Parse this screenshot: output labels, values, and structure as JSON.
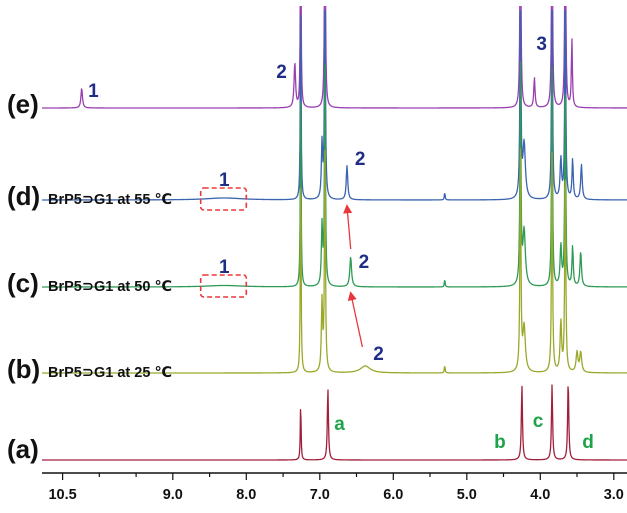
{
  "chart_data": {
    "type": "line",
    "title": "",
    "xlabel": "",
    "ylabel": "",
    "x_axis": {
      "reversed": true,
      "xlim": [
        10.78,
        2.82
      ],
      "ticks": [
        10.5,
        9.0,
        8.0,
        7.0,
        6.0,
        5.0,
        4.0,
        3.0
      ],
      "tick_labels": [
        "10.5",
        "9.0",
        "8.0",
        "7.0",
        "6.0",
        "5.0",
        "4.0",
        "3.0"
      ]
    },
    "grid": false,
    "traces": [
      {
        "id": "e",
        "label": "(e)",
        "condition": "",
        "color": "#9a3fb0",
        "peaks": [
          {
            "ppm": 10.24,
            "height": 0.2,
            "width": 0.012
          },
          {
            "ppm": 7.34,
            "height": 0.45,
            "width": 0.012
          },
          {
            "ppm": 7.26,
            "height": 2.2,
            "width": 0.006
          },
          {
            "ppm": 6.93,
            "height": 2.2,
            "width": 0.008
          },
          {
            "ppm": 4.27,
            "height": 2.2,
            "width": 0.008
          },
          {
            "ppm": 4.08,
            "height": 0.3,
            "width": 0.01
          },
          {
            "ppm": 3.84,
            "height": 2.2,
            "width": 0.008
          },
          {
            "ppm": 3.66,
            "height": 2.2,
            "width": 0.008
          },
          {
            "ppm": 3.57,
            "height": 0.7,
            "width": 0.008
          }
        ]
      },
      {
        "id": "d",
        "label": "(d)",
        "condition": "BrP5⊃G1 at 55 ℃",
        "color": "#3a63b0",
        "peaks": [
          {
            "ppm": 8.3,
            "height": 0.02,
            "width": 0.3
          },
          {
            "ppm": 7.26,
            "height": 2.2,
            "width": 0.006
          },
          {
            "ppm": 6.93,
            "height": 2.2,
            "width": 0.008
          },
          {
            "ppm": 6.97,
            "height": 0.55,
            "width": 0.01
          },
          {
            "ppm": 6.63,
            "height": 0.34,
            "width": 0.012
          },
          {
            "ppm": 5.3,
            "height": 0.08,
            "width": 0.006
          },
          {
            "ppm": 4.27,
            "height": 2.2,
            "width": 0.008
          },
          {
            "ppm": 4.22,
            "height": 0.55,
            "width": 0.02
          },
          {
            "ppm": 3.84,
            "height": 2.2,
            "width": 0.008
          },
          {
            "ppm": 3.72,
            "height": 0.4,
            "width": 0.012
          },
          {
            "ppm": 3.66,
            "height": 2.2,
            "width": 0.008
          },
          {
            "ppm": 3.56,
            "height": 0.4,
            "width": 0.01
          },
          {
            "ppm": 3.44,
            "height": 0.35,
            "width": 0.012
          }
        ]
      },
      {
        "id": "c",
        "label": "(c)",
        "condition": "BrP5⊃G1 at 50 ℃",
        "color": "#2e9a55",
        "peaks": [
          {
            "ppm": 8.3,
            "height": 0.015,
            "width": 0.3
          },
          {
            "ppm": 7.26,
            "height": 2.2,
            "width": 0.006
          },
          {
            "ppm": 6.93,
            "height": 2.2,
            "width": 0.008
          },
          {
            "ppm": 6.97,
            "height": 0.6,
            "width": 0.01
          },
          {
            "ppm": 6.58,
            "height": 0.3,
            "width": 0.014
          },
          {
            "ppm": 5.3,
            "height": 0.08,
            "width": 0.006
          },
          {
            "ppm": 4.27,
            "height": 2.2,
            "width": 0.008
          },
          {
            "ppm": 4.22,
            "height": 0.55,
            "width": 0.02
          },
          {
            "ppm": 3.84,
            "height": 2.2,
            "width": 0.008
          },
          {
            "ppm": 3.72,
            "height": 0.4,
            "width": 0.012
          },
          {
            "ppm": 3.66,
            "height": 2.2,
            "width": 0.008
          },
          {
            "ppm": 3.56,
            "height": 0.4,
            "width": 0.01
          },
          {
            "ppm": 3.45,
            "height": 0.35,
            "width": 0.012
          }
        ]
      },
      {
        "id": "b",
        "label": "(b)",
        "condition": "BrP5⊃G1 at 25 ℃",
        "color": "#9aa829",
        "peaks": [
          {
            "ppm": 7.26,
            "height": 2.2,
            "width": 0.006
          },
          {
            "ppm": 6.93,
            "height": 2.2,
            "width": 0.008
          },
          {
            "ppm": 6.97,
            "height": 0.7,
            "width": 0.01
          },
          {
            "ppm": 6.38,
            "height": 0.07,
            "width": 0.08
          },
          {
            "ppm": 5.3,
            "height": 0.08,
            "width": 0.006
          },
          {
            "ppm": 4.27,
            "height": 2.2,
            "width": 0.008
          },
          {
            "ppm": 4.22,
            "height": 0.45,
            "width": 0.02
          },
          {
            "ppm": 3.84,
            "height": 2.2,
            "width": 0.008
          },
          {
            "ppm": 3.72,
            "height": 0.5,
            "width": 0.012
          },
          {
            "ppm": 3.66,
            "height": 2.2,
            "width": 0.008
          },
          {
            "ppm": 3.5,
            "height": 0.2,
            "width": 0.015
          },
          {
            "ppm": 3.45,
            "height": 0.2,
            "width": 0.015
          }
        ]
      },
      {
        "id": "a",
        "label": "(a)",
        "condition": "",
        "color": "#a0203a",
        "peaks": [
          {
            "ppm": 7.26,
            "height": 0.6,
            "width": 0.006
          },
          {
            "ppm": 6.89,
            "height": 0.72,
            "width": 0.009
          },
          {
            "ppm": 4.25,
            "height": 0.75,
            "width": 0.009
          },
          {
            "ppm": 3.84,
            "height": 0.75,
            "width": 0.009
          },
          {
            "ppm": 3.62,
            "height": 0.8,
            "width": 0.009
          }
        ]
      }
    ],
    "annotations": {
      "peak_numbers": [
        {
          "trace": "e",
          "text": "1",
          "ppm": 10.08
        },
        {
          "trace": "e",
          "text": "2",
          "ppm": 7.52
        },
        {
          "trace": "e",
          "text": "3",
          "ppm": 3.98
        },
        {
          "trace": "d",
          "text": "1",
          "ppm": 8.3
        },
        {
          "trace": "d",
          "text": "2",
          "ppm": 6.45
        },
        {
          "trace": "c",
          "text": "1",
          "ppm": 8.3
        },
        {
          "trace": "c",
          "text": "2",
          "ppm": 6.4
        },
        {
          "trace": "b",
          "text": "2",
          "ppm": 6.2
        }
      ],
      "assignments": [
        {
          "trace": "a",
          "text": "a",
          "ppm": 6.73
        },
        {
          "trace": "a",
          "text": "b",
          "ppm": 4.55
        },
        {
          "trace": "a",
          "text": "c",
          "ppm": 4.03
        },
        {
          "trace": "a",
          "text": "d",
          "ppm": 3.35
        }
      ],
      "dashed_boxes": [
        {
          "trace": "d",
          "ppm_from": 8.62,
          "ppm_to": 8.0
        },
        {
          "trace": "c",
          "ppm_from": 8.62,
          "ppm_to": 8.0
        }
      ],
      "arrows": [
        {
          "from_trace": "c",
          "to_trace": "d",
          "ppm_from": 6.58,
          "ppm_to": 6.63
        },
        {
          "from_trace": "b",
          "to_trace": "c",
          "ppm_from": 6.42,
          "ppm_to": 6.58
        }
      ]
    },
    "colors": {
      "peak_number": "#1f2d86",
      "assignment": "#1fa34a",
      "arrow": "#e8383d",
      "dashed_box": "#e8383d",
      "axis": "#111111"
    }
  }
}
